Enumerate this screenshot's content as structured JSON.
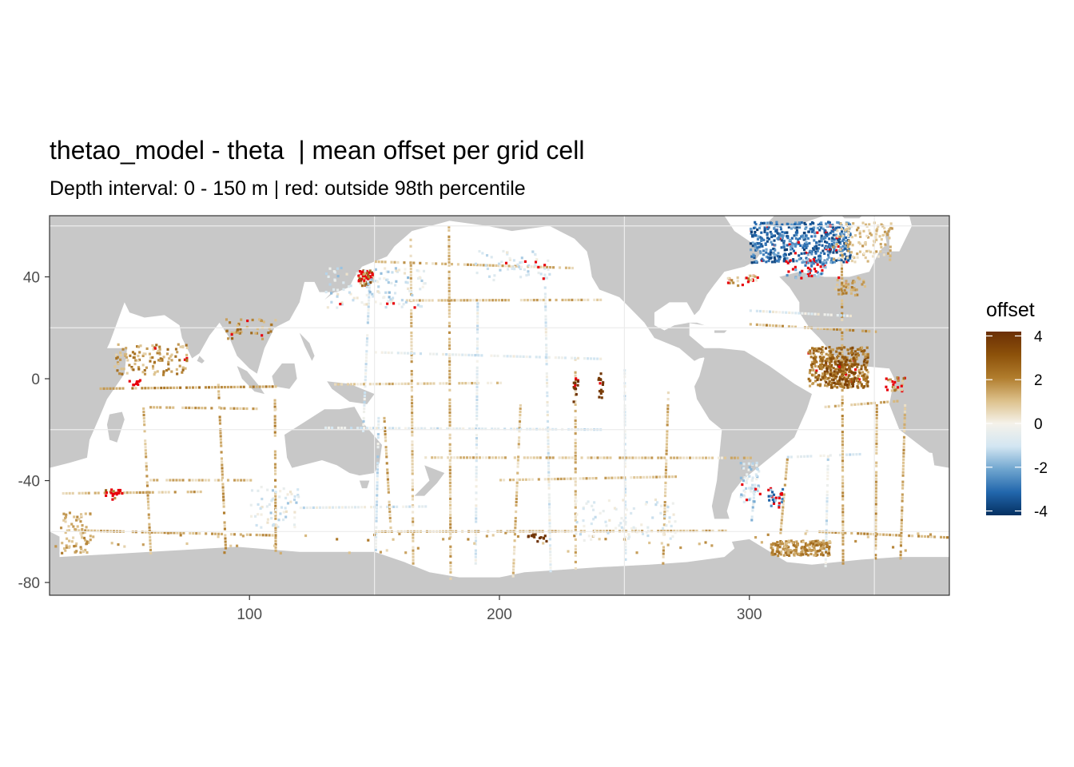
{
  "chart_data": {
    "type": "heatmap",
    "title": "thetao_model - theta  | mean offset per grid cell",
    "subtitle": "Depth interval: 0 - 150 m | red: outside 98th percentile",
    "xlim": [
      20,
      380
    ],
    "ylim": [
      -85,
      64
    ],
    "x_ticks": [
      100,
      200,
      300
    ],
    "y_ticks": [
      40,
      0,
      -40,
      -80
    ],
    "grid": true,
    "legend": {
      "title": "offset",
      "position": "right",
      "range": [
        -4.2,
        4.2
      ],
      "ticks": [
        4,
        2,
        0,
        -2,
        -4
      ],
      "colors": [
        "#053061",
        "#2166ac",
        "#6fa5cf",
        "#d3e6f2",
        "#f5f2ea",
        "#dcc08a",
        "#b07c2c",
        "#8c510a",
        "#6b2f05"
      ]
    },
    "colors": {
      "land": "#c8c8c8",
      "ocean": "#ffffff",
      "outlier": "#e8000a",
      "grid": "#ececec",
      "frame": "#333333"
    }
  }
}
